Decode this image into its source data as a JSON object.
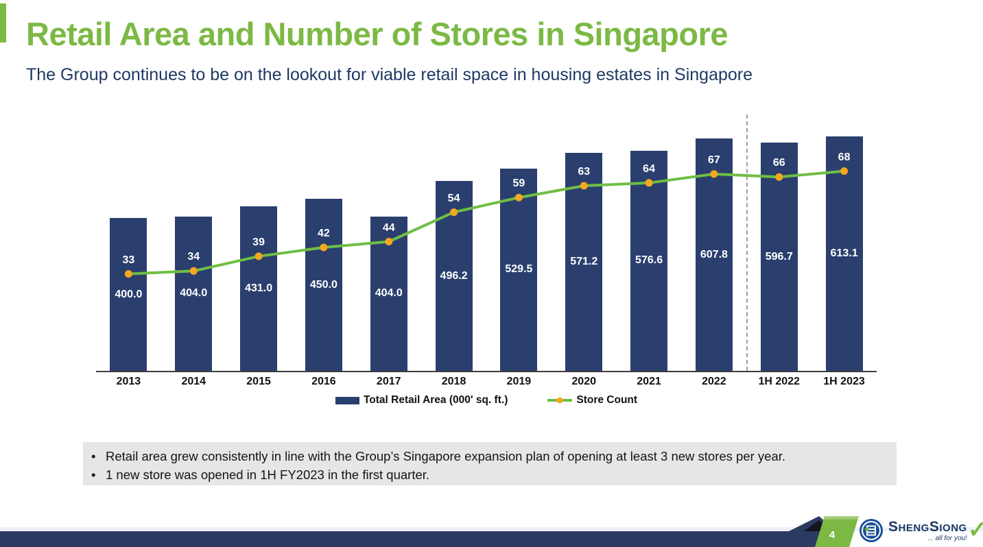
{
  "slide": {
    "title": "Retail Area and Number of Stores in Singapore",
    "subtitle": "The Group continues to be on the lookout for viable retail space in housing estates in Singapore",
    "bullets": [
      "Retail area grew consistently in line with the Group’s Singapore expansion plan of opening at least 3 new stores per year.",
      "1 new store was opened in 1H FY2023 in the first quarter."
    ],
    "page_number": "4",
    "logo": {
      "brand_parts": [
        {
          "cap": "S",
          "rest": "HENG"
        },
        {
          "cap": "S",
          "rest": "IONG"
        }
      ],
      "tagline": "... all for you!",
      "check_glyph": "✓"
    }
  },
  "chart_data": {
    "type": "bar",
    "subtype": "combo bar + line, dual implicit axes, no visible value axes",
    "categories": [
      "2013",
      "2014",
      "2015",
      "2016",
      "2017",
      "2018",
      "2019",
      "2020",
      "2021",
      "2022",
      "1H 2022",
      "1H 2023"
    ],
    "series": [
      {
        "name": "Total Retail Area (000' sq. ft.)",
        "kind": "bar",
        "color": "#2A3F6E",
        "label_color": "#FFFFFF",
        "values": [
          400.0,
          404.0,
          431.0,
          450.0,
          404.0,
          496.2,
          529.5,
          571.2,
          576.6,
          607.8,
          596.7,
          613.1
        ]
      },
      {
        "name": "Store Count",
        "kind": "line",
        "color": "#6FBE44",
        "marker_color": "#F5A71F",
        "label_color": "#FFFFFF",
        "values": [
          33,
          34,
          39,
          42,
          44,
          54,
          59,
          63,
          64,
          67,
          66,
          68
        ]
      }
    ],
    "separator_after_category": "2022",
    "separator_style": "dashed-vertical-line",
    "legend_position": "bottom-center",
    "grid": false,
    "value_labels": true,
    "axis_color": "#3C3C3C"
  }
}
